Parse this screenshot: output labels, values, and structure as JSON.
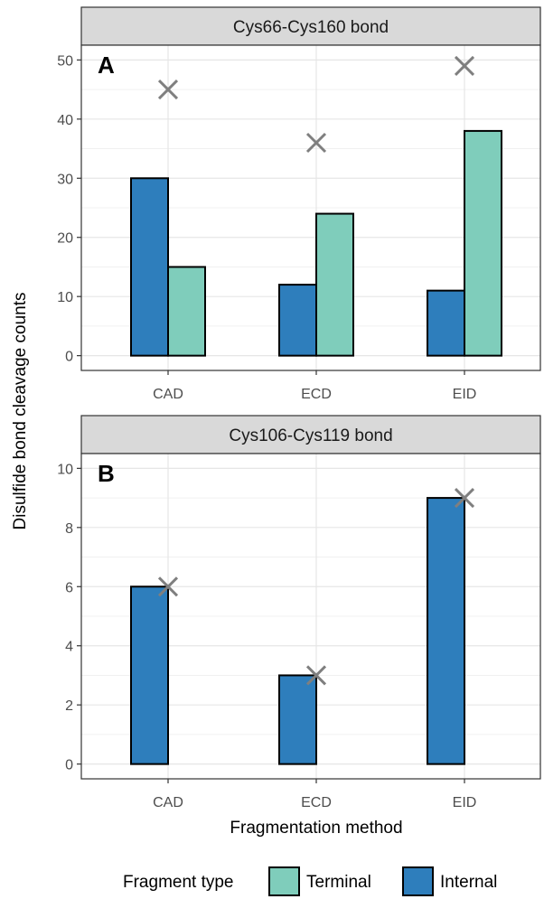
{
  "chart_data": [
    {
      "type": "bar",
      "panel_label": "A",
      "title": "Cys66-Cys160 bond",
      "categories": [
        "CAD",
        "ECD",
        "EID"
      ],
      "series": [
        {
          "name": "Internal",
          "values": [
            30,
            12,
            11
          ],
          "color": "#2e7ebc"
        },
        {
          "name": "Terminal",
          "values": [
            15,
            24,
            38
          ],
          "color": "#7fcdbb"
        }
      ],
      "totals_marker": {
        "shape": "x",
        "values": [
          45,
          36,
          49
        ],
        "color": "#7f7f7f"
      },
      "ylim": [
        -2.5,
        52.5
      ],
      "yticks": [
        0,
        10,
        20,
        30,
        40,
        50
      ],
      "grid": true
    },
    {
      "type": "bar",
      "panel_label": "B",
      "title": "Cys106-Cys119 bond",
      "categories": [
        "CAD",
        "ECD",
        "EID"
      ],
      "series": [
        {
          "name": "Internal",
          "values": [
            6,
            3,
            9
          ],
          "color": "#2e7ebc"
        },
        {
          "name": "Terminal",
          "values": [
            0,
            0,
            0
          ],
          "color": "#7fcdbb"
        }
      ],
      "totals_marker": {
        "shape": "x",
        "values": [
          6,
          3,
          9
        ],
        "color": "#7f7f7f"
      },
      "ylim": [
        -0.5,
        10.5
      ],
      "yticks": [
        0,
        2,
        4,
        6,
        8,
        10
      ],
      "grid": true
    }
  ],
  "xlabel": "Fragmentation method",
  "ylabel": "Disulfide bond cleavage counts",
  "legend": {
    "title": "Fragment type",
    "position": "bottom",
    "entries": [
      {
        "name": "Terminal",
        "color": "#7fcdbb"
      },
      {
        "name": "Internal",
        "color": "#2e7ebc"
      }
    ]
  }
}
